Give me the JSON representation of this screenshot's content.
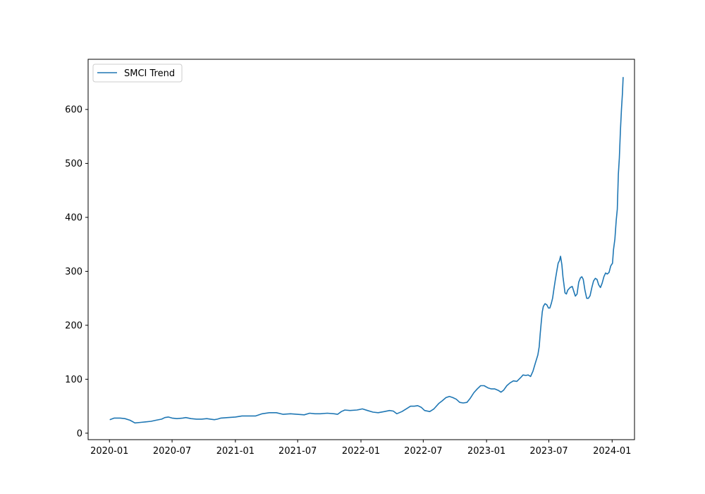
{
  "chart_data": {
    "type": "line",
    "title": "",
    "xlabel": "",
    "ylabel": "",
    "xlim": [
      "2019-10-31",
      "2024-03-06"
    ],
    "ylim": [
      -12,
      693
    ],
    "x_ticks": [
      "2020-01",
      "2020-07",
      "2021-01",
      "2021-07",
      "2022-01",
      "2022-07",
      "2023-01",
      "2023-07",
      "2024-01"
    ],
    "y_ticks": [
      0,
      100,
      200,
      300,
      400,
      500,
      600
    ],
    "grid": false,
    "legend": {
      "position": "top-left",
      "entries": [
        "SMCI Trend"
      ]
    },
    "series": [
      {
        "name": "SMCI Trend",
        "color": "#1f77b4",
        "points": [
          [
            "2020-01-02",
            25
          ],
          [
            "2020-01-15",
            28
          ],
          [
            "2020-02-01",
            28
          ],
          [
            "2020-02-15",
            27
          ],
          [
            "2020-03-01",
            24
          ],
          [
            "2020-03-15",
            19
          ],
          [
            "2020-04-01",
            20
          ],
          [
            "2020-04-15",
            21
          ],
          [
            "2020-05-01",
            22
          ],
          [
            "2020-05-15",
            24
          ],
          [
            "2020-06-01",
            26
          ],
          [
            "2020-06-10",
            29
          ],
          [
            "2020-06-20",
            30
          ],
          [
            "2020-07-01",
            28
          ],
          [
            "2020-07-15",
            27
          ],
          [
            "2020-08-01",
            28
          ],
          [
            "2020-08-10",
            29
          ],
          [
            "2020-08-25",
            27
          ],
          [
            "2020-09-10",
            26
          ],
          [
            "2020-09-25",
            26
          ],
          [
            "2020-10-10",
            27
          ],
          [
            "2020-10-20",
            26
          ],
          [
            "2020-11-01",
            25
          ],
          [
            "2020-11-10",
            26
          ],
          [
            "2020-11-20",
            28
          ],
          [
            "2020-12-10",
            29
          ],
          [
            "2021-01-01",
            30
          ],
          [
            "2021-01-20",
            32
          ],
          [
            "2021-02-10",
            32
          ],
          [
            "2021-03-01",
            32
          ],
          [
            "2021-03-20",
            36
          ],
          [
            "2021-04-10",
            38
          ],
          [
            "2021-04-30",
            38
          ],
          [
            "2021-05-20",
            35
          ],
          [
            "2021-06-10",
            36
          ],
          [
            "2021-06-30",
            35
          ],
          [
            "2021-07-20",
            34
          ],
          [
            "2021-08-05",
            37
          ],
          [
            "2021-08-20",
            36
          ],
          [
            "2021-09-05",
            36
          ],
          [
            "2021-09-25",
            37
          ],
          [
            "2021-10-15",
            36
          ],
          [
            "2021-10-25",
            35
          ],
          [
            "2021-11-05",
            40
          ],
          [
            "2021-11-15",
            43
          ],
          [
            "2021-11-30",
            42
          ],
          [
            "2021-12-20",
            43
          ],
          [
            "2022-01-05",
            45
          ],
          [
            "2022-01-20",
            42
          ],
          [
            "2022-02-05",
            39
          ],
          [
            "2022-02-20",
            38
          ],
          [
            "2022-03-10",
            40
          ],
          [
            "2022-03-25",
            42
          ],
          [
            "2022-04-05",
            41
          ],
          [
            "2022-04-15",
            36
          ],
          [
            "2022-04-30",
            40
          ],
          [
            "2022-05-15",
            46
          ],
          [
            "2022-05-25",
            50
          ],
          [
            "2022-06-05",
            50
          ],
          [
            "2022-06-15",
            51
          ],
          [
            "2022-06-25",
            48
          ],
          [
            "2022-07-05",
            42
          ],
          [
            "2022-07-20",
            40
          ],
          [
            "2022-08-01",
            45
          ],
          [
            "2022-08-15",
            55
          ],
          [
            "2022-08-25",
            60
          ],
          [
            "2022-09-05",
            66
          ],
          [
            "2022-09-15",
            68
          ],
          [
            "2022-09-25",
            66
          ],
          [
            "2022-10-05",
            63
          ],
          [
            "2022-10-15",
            57
          ],
          [
            "2022-10-25",
            56
          ],
          [
            "2022-11-05",
            57
          ],
          [
            "2022-11-15",
            65
          ],
          [
            "2022-11-25",
            75
          ],
          [
            "2022-12-05",
            82
          ],
          [
            "2022-12-15",
            88
          ],
          [
            "2022-12-25",
            88
          ],
          [
            "2023-01-05",
            84
          ],
          [
            "2023-01-15",
            82
          ],
          [
            "2023-01-25",
            82
          ],
          [
            "2023-02-05",
            79
          ],
          [
            "2023-02-12",
            76
          ],
          [
            "2023-02-20",
            80
          ],
          [
            "2023-03-01",
            88
          ],
          [
            "2023-03-10",
            93
          ],
          [
            "2023-03-20",
            97
          ],
          [
            "2023-03-30",
            96
          ],
          [
            "2023-04-10",
            103
          ],
          [
            "2023-04-17",
            108
          ],
          [
            "2023-04-25",
            107
          ],
          [
            "2023-05-02",
            108
          ],
          [
            "2023-05-09",
            105
          ],
          [
            "2023-05-16",
            115
          ],
          [
            "2023-05-23",
            130
          ],
          [
            "2023-05-30",
            145
          ],
          [
            "2023-06-03",
            160
          ],
          [
            "2023-06-06",
            185
          ],
          [
            "2023-06-09",
            205
          ],
          [
            "2023-06-12",
            225
          ],
          [
            "2023-06-15",
            235
          ],
          [
            "2023-06-20",
            240
          ],
          [
            "2023-06-25",
            238
          ],
          [
            "2023-06-30",
            232
          ],
          [
            "2023-07-04",
            232
          ],
          [
            "2023-07-08",
            240
          ],
          [
            "2023-07-12",
            250
          ],
          [
            "2023-07-16",
            268
          ],
          [
            "2023-07-20",
            285
          ],
          [
            "2023-07-24",
            300
          ],
          [
            "2023-07-28",
            315
          ],
          [
            "2023-08-01",
            320
          ],
          [
            "2023-08-04",
            328
          ],
          [
            "2023-08-08",
            312
          ],
          [
            "2023-08-11",
            290
          ],
          [
            "2023-08-14",
            275
          ],
          [
            "2023-08-17",
            260
          ],
          [
            "2023-08-21",
            258
          ],
          [
            "2023-08-25",
            265
          ],
          [
            "2023-09-01",
            270
          ],
          [
            "2023-09-07",
            272
          ],
          [
            "2023-09-12",
            262
          ],
          [
            "2023-09-16",
            254
          ],
          [
            "2023-09-21",
            258
          ],
          [
            "2023-09-26",
            280
          ],
          [
            "2023-10-01",
            288
          ],
          [
            "2023-10-05",
            290
          ],
          [
            "2023-10-09",
            285
          ],
          [
            "2023-10-14",
            265
          ],
          [
            "2023-10-19",
            250
          ],
          [
            "2023-10-24",
            250
          ],
          [
            "2023-10-29",
            255
          ],
          [
            "2023-11-03",
            270
          ],
          [
            "2023-11-08",
            282
          ],
          [
            "2023-11-13",
            287
          ],
          [
            "2023-11-18",
            285
          ],
          [
            "2023-11-23",
            275
          ],
          [
            "2023-11-28",
            270
          ],
          [
            "2023-12-03",
            278
          ],
          [
            "2023-12-08",
            290
          ],
          [
            "2023-12-13",
            297
          ],
          [
            "2023-12-18",
            295
          ],
          [
            "2023-12-23",
            298
          ],
          [
            "2023-12-28",
            310
          ],
          [
            "2024-01-02",
            315
          ],
          [
            "2024-01-05",
            340
          ],
          [
            "2024-01-09",
            360
          ],
          [
            "2024-01-13",
            395
          ],
          [
            "2024-01-16",
            415
          ],
          [
            "2024-01-19",
            480
          ],
          [
            "2024-01-22",
            510
          ],
          [
            "2024-01-25",
            560
          ],
          [
            "2024-01-28",
            600
          ],
          [
            "2024-01-31",
            630
          ],
          [
            "2024-02-02",
            660
          ]
        ]
      }
    ]
  }
}
